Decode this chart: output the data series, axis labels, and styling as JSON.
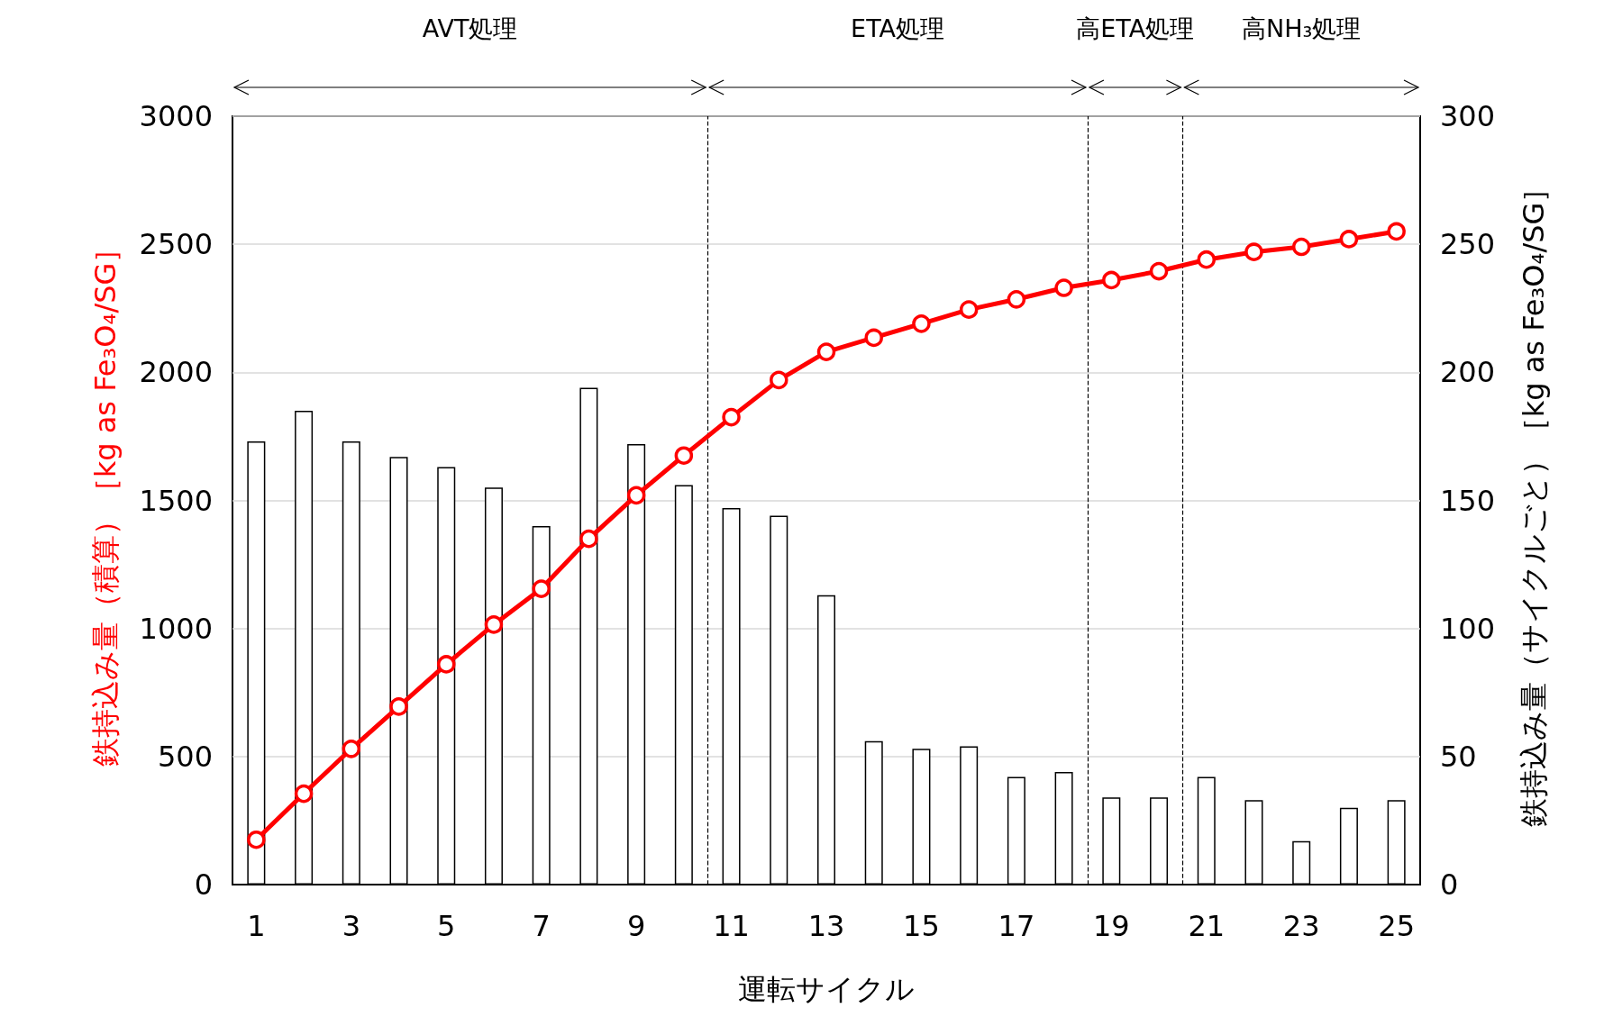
{
  "chart_data": {
    "type": "bar",
    "xlabel": "運転サイクル",
    "ylabel": "鉄持込み量（積算）［kg as Fe₃O₄/SG］",
    "y2label": "鉄持込み量（サイクルごと）［kg as Fe₃O₄/SG］",
    "x": [
      1,
      2,
      3,
      4,
      5,
      6,
      7,
      8,
      9,
      10,
      11,
      12,
      13,
      14,
      15,
      16,
      17,
      18,
      19,
      20,
      21,
      22,
      23,
      24,
      25
    ],
    "xlim": [
      0.5,
      25.5
    ],
    "xticks": [
      1,
      3,
      5,
      7,
      9,
      11,
      13,
      15,
      17,
      19,
      21,
      23,
      25
    ],
    "ylim": [
      0,
      3000
    ],
    "yticks": [
      0,
      500,
      {
        "value": 1000,
        "label": "1000"
      },
      {
        "value": 1500,
        "label": "1500"
      },
      {
        "value": 2000,
        "label": "2000"
      },
      {
        "value": 2500,
        "label": "2500"
      },
      {
        "value": 3000,
        "label": "3000"
      }
    ],
    "y2lim": [
      0,
      300
    ],
    "y2ticks": [
      0,
      50,
      100,
      150,
      200,
      250,
      300
    ],
    "series": [
      {
        "axis": "y2",
        "color": "#ffffff",
        "values": [
          173,
          185,
          173,
          167,
          163,
          155,
          140,
          194,
          172,
          156,
          147,
          144,
          113,
          56,
          53,
          54,
          42,
          44,
          34,
          34,
          42,
          33,
          17,
          30,
          33
        ]
      },
      {
        "type": "line",
        "axis": "y",
        "color": "#ff0000",
        "marker": "circle",
        "values": [
          175,
          355,
          530,
          695,
          860,
          1015,
          1155,
          1350,
          1520,
          1675,
          1825,
          1970,
          2080,
          2135,
          2190,
          2245,
          2285,
          2330,
          2360,
          2395,
          2440,
          2470,
          2490,
          2520,
          2550
        ]
      }
    ],
    "ref_lines": [
      {
        "axis": "x",
        "value": 10.5,
        "line_style": "dashed"
      },
      {
        "axis": "x",
        "value": 18.5,
        "line_style": "dashed"
      },
      {
        "axis": "x",
        "value": 20.5,
        "line_style": "dashed"
      }
    ],
    "annotations": [
      "AVT処理",
      "ETA処理",
      "高ETA処理",
      "高NH₃処理"
    ],
    "grid": "y"
  }
}
